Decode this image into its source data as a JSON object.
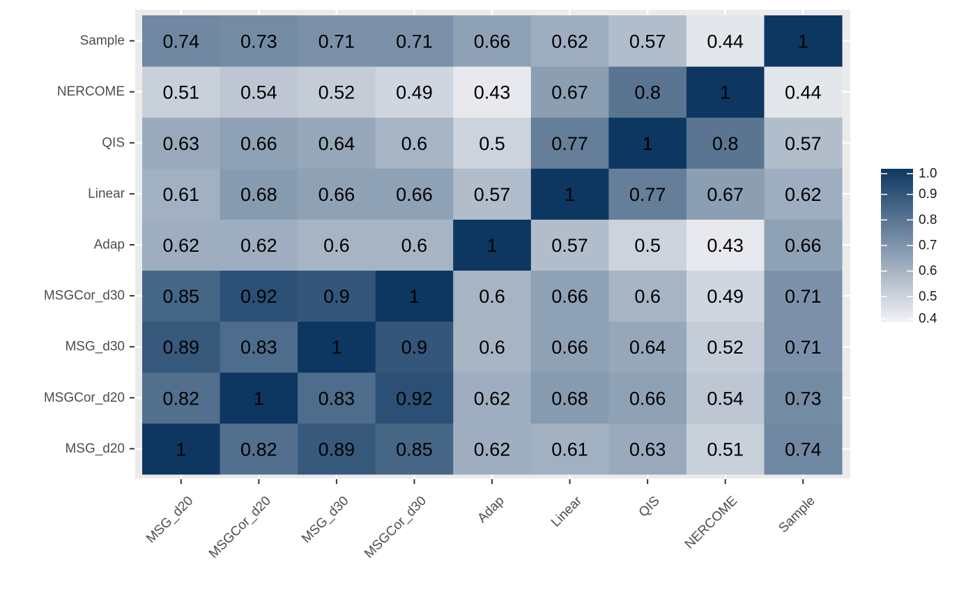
{
  "chart_data": {
    "type": "heatmap",
    "title": "",
    "xlabel": "",
    "ylabel": "",
    "x_categories": [
      "MSG_d20",
      "MSGCor_d20",
      "MSG_d30",
      "MSGCor_d30",
      "Adap",
      "Linear",
      "QIS",
      "NERCOME",
      "Sample"
    ],
    "y_categories": [
      "MSG_d20",
      "MSGCor_d20",
      "MSG_d30",
      "MSGCor_d30",
      "Adap",
      "Linear",
      "QIS",
      "NERCOME",
      "Sample"
    ],
    "values": [
      [
        1,
        0.82,
        0.89,
        0.85,
        0.62,
        0.61,
        0.63,
        0.51,
        0.74
      ],
      [
        0.82,
        1,
        0.83,
        0.92,
        0.62,
        0.68,
        0.66,
        0.54,
        0.73
      ],
      [
        0.89,
        0.83,
        1,
        0.9,
        0.6,
        0.66,
        0.64,
        0.52,
        0.71
      ],
      [
        0.85,
        0.92,
        0.9,
        1,
        0.6,
        0.66,
        0.6,
        0.49,
        0.71
      ],
      [
        0.62,
        0.62,
        0.6,
        0.6,
        1,
        0.57,
        0.5,
        0.43,
        0.66
      ],
      [
        0.61,
        0.68,
        0.66,
        0.66,
        0.57,
        1,
        0.77,
        0.67,
        0.62
      ],
      [
        0.63,
        0.66,
        0.64,
        0.6,
        0.5,
        0.77,
        1,
        0.8,
        0.57
      ],
      [
        0.51,
        0.54,
        0.52,
        0.49,
        0.43,
        0.67,
        0.8,
        1,
        0.44
      ],
      [
        0.74,
        0.73,
        0.71,
        0.71,
        0.66,
        0.62,
        0.57,
        0.44,
        1
      ]
    ],
    "color_scale": {
      "low": "#f2f2f5",
      "high": "#0d3761",
      "min": 0.4,
      "max": 1.0
    },
    "legend": {
      "title": "",
      "ticks": [
        "0.4",
        "0.5",
        "0.6",
        "0.7",
        "0.8",
        "0.9",
        "1.0"
      ],
      "tick_values": [
        0.4,
        0.5,
        0.6,
        0.7,
        0.8,
        0.9,
        1.0
      ],
      "placement": "right"
    },
    "panel_background": "#ebebeb",
    "grid": true
  }
}
